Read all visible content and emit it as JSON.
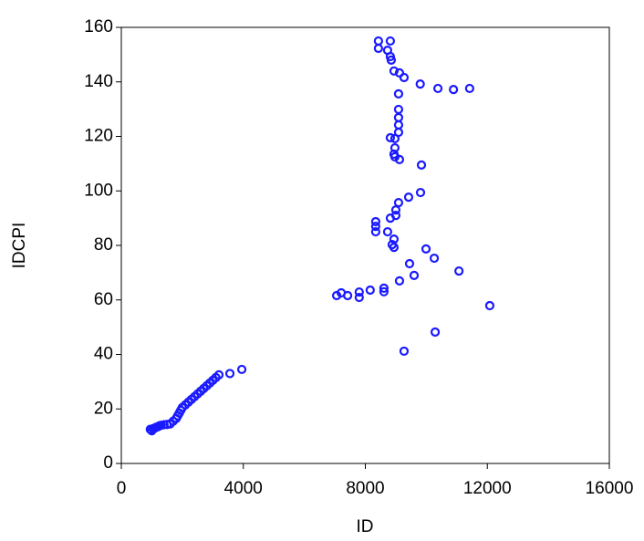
{
  "chart_data": {
    "type": "scatter",
    "x_label": "ID",
    "y_label": "IDCPI",
    "xlim": [
      0,
      16000
    ],
    "xticks": [
      0,
      4000,
      8000,
      12000,
      16000
    ],
    "ylim": [
      0,
      160
    ],
    "yticks": [
      0,
      20,
      40,
      60,
      80,
      100,
      120,
      140,
      160
    ],
    "color": "#1a1aff",
    "x": [
      950,
      1000,
      1050,
      1100,
      1150,
      1200,
      1250,
      1300,
      1400,
      1500,
      1600,
      1700,
      1800,
      1850,
      1900,
      1950,
      2000,
      2100,
      2200,
      2300,
      2400,
      2500,
      2600,
      2700,
      2800,
      2900,
      3000,
      3100,
      3200,
      3560,
      3950,
      8430,
      8820,
      8430,
      8730,
      8820,
      8850,
      8940,
      9120,
      9270,
      9800,
      10380,
      10890,
      11420,
      9090,
      9090,
      9090,
      9090,
      9090,
      8820,
      8970,
      8970,
      8940,
      8970,
      9120,
      9840,
      9810,
      9420,
      9090,
      9000,
      9000,
      8820,
      8340,
      8340,
      8340,
      8730,
      8940,
      8880,
      8940,
      9990,
      10260,
      9450,
      9600,
      11070,
      9120,
      8610,
      8610,
      8160,
      7800,
      7800,
      7420,
      7210,
      7060,
      12080,
      10290,
      9270
    ],
    "y": [
      12.5,
      12,
      12.8,
      13,
      13.3,
      13.5,
      13.8,
      14,
      14.2,
      14.3,
      14.5,
      15.5,
      16.5,
      17.5,
      18.5,
      19.5,
      20.5,
      21.5,
      22.5,
      23.5,
      24.5,
      25.5,
      26.5,
      27.5,
      28.5,
      29.5,
      30.5,
      31.5,
      32.5,
      33,
      34.5,
      155,
      155,
      152.3,
      151.6,
      149.3,
      148,
      144,
      143.3,
      141.6,
      139.2,
      137.6,
      137.2,
      137.6,
      135.6,
      129.9,
      126.9,
      124.2,
      121.5,
      119.5,
      119.2,
      115.8,
      113.5,
      112.5,
      111.5,
      109.5,
      99.4,
      97.7,
      95.7,
      93,
      91,
      90,
      88.7,
      87,
      85,
      85,
      82.3,
      80.3,
      79.3,
      78.7,
      75.3,
      73.3,
      69,
      70.6,
      67,
      64.3,
      63,
      63.6,
      62.9,
      60.9,
      61.6,
      62.6,
      61.6,
      57.9,
      48.2,
      41.2
    ]
  }
}
